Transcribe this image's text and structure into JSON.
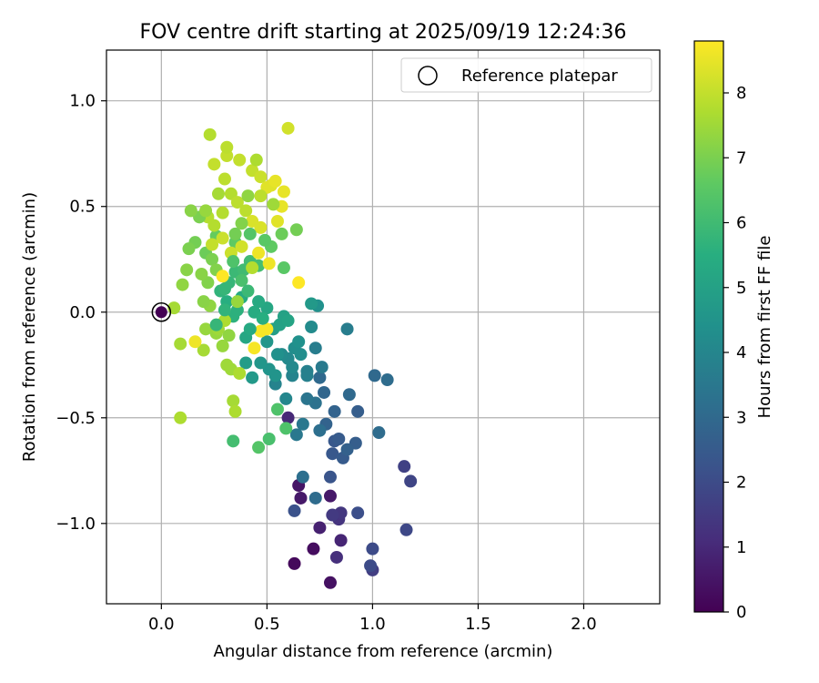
{
  "chart_data": {
    "type": "scatter",
    "title": "FOV centre drift starting at 2025/09/19 12:24:36",
    "xlabel": "Angular distance from reference (arcmin)",
    "ylabel": "Rotation from reference (arcmin)",
    "xlim": [
      -0.26,
      2.36
    ],
    "ylim": [
      -1.38,
      1.24
    ],
    "x_ticks": [
      0.0,
      0.5,
      1.0,
      1.5,
      2.0
    ],
    "x_tick_labels": [
      "0.0",
      "0.5",
      "1.0",
      "1.5",
      "2.0"
    ],
    "y_ticks": [
      -1.0,
      -0.5,
      0.0,
      0.5,
      1.0
    ],
    "y_tick_labels": [
      "−1.0",
      "−0.5",
      "0.0",
      "0.5",
      "1.0"
    ],
    "grid": true,
    "legend": {
      "position": "top-right",
      "entries": [
        "Reference platepar"
      ]
    },
    "reference_point": {
      "x": 0.0,
      "y": 0.0,
      "label": "Reference platepar"
    },
    "colorbar": {
      "label": "Hours from first FF file",
      "colormap": "viridis",
      "range": [
        0,
        8.8
      ],
      "ticks": [
        0,
        1,
        2,
        3,
        4,
        5,
        6,
        7,
        8
      ],
      "tick_labels": [
        "0",
        "1",
        "2",
        "3",
        "4",
        "5",
        "6",
        "7",
        "8"
      ]
    },
    "points": [
      [
        0.63,
        -1.19,
        0.2
      ],
      [
        0.72,
        -1.12,
        0.3
      ],
      [
        0.8,
        -1.28,
        0.4
      ],
      [
        0.65,
        -0.82,
        0.5
      ],
      [
        0.66,
        -0.88,
        0.6
      ],
      [
        0.8,
        -0.87,
        0.6
      ],
      [
        0.75,
        -1.02,
        0.8
      ],
      [
        0.85,
        -1.08,
        0.9
      ],
      [
        0.6,
        -0.5,
        1.0
      ],
      [
        0.83,
        -1.16,
        1.2
      ],
      [
        0.84,
        -0.98,
        1.3
      ],
      [
        0.85,
        -0.95,
        1.4
      ],
      [
        0.81,
        -0.96,
        1.5
      ],
      [
        1.0,
        -1.22,
        1.6
      ],
      [
        1.15,
        -0.73,
        1.7
      ],
      [
        1.18,
        -0.8,
        1.8
      ],
      [
        1.16,
        -1.03,
        1.9
      ],
      [
        0.99,
        -1.2,
        2.0
      ],
      [
        1.0,
        -1.12,
        2.0
      ],
      [
        0.93,
        -0.95,
        2.1
      ],
      [
        0.63,
        -0.94,
        2.2
      ],
      [
        0.8,
        -0.78,
        2.3
      ],
      [
        0.81,
        -0.67,
        2.4
      ],
      [
        0.82,
        -0.61,
        2.4
      ],
      [
        0.84,
        -0.6,
        2.5
      ],
      [
        0.86,
        -0.69,
        2.5
      ],
      [
        0.92,
        -0.62,
        2.6
      ],
      [
        0.93,
        -0.47,
        2.6
      ],
      [
        0.88,
        -0.65,
        2.7
      ],
      [
        0.82,
        -0.47,
        2.8
      ],
      [
        0.78,
        -0.53,
        2.8
      ],
      [
        0.77,
        -0.38,
        2.9
      ],
      [
        0.75,
        -0.31,
        3.0
      ],
      [
        0.89,
        -0.39,
        3.0
      ],
      [
        1.01,
        -0.3,
        3.0
      ],
      [
        1.07,
        -0.32,
        3.1
      ],
      [
        1.03,
        -0.57,
        3.1
      ],
      [
        0.73,
        -0.88,
        3.1
      ],
      [
        0.67,
        -0.78,
        3.2
      ],
      [
        0.75,
        -0.56,
        3.2
      ],
      [
        0.73,
        -0.43,
        3.3
      ],
      [
        0.69,
        -0.41,
        3.4
      ],
      [
        0.67,
        -0.53,
        3.5
      ],
      [
        0.64,
        -0.58,
        3.5
      ],
      [
        0.76,
        -0.26,
        3.6
      ],
      [
        0.73,
        -0.17,
        3.7
      ],
      [
        0.88,
        -0.08,
        3.7
      ],
      [
        0.69,
        -0.28,
        3.8
      ],
      [
        0.69,
        -0.3,
        3.8
      ],
      [
        0.62,
        -0.3,
        3.9
      ],
      [
        0.54,
        -0.34,
        3.9
      ],
      [
        0.59,
        -0.41,
        4.0
      ],
      [
        0.62,
        -0.26,
        4.1
      ],
      [
        0.6,
        -0.22,
        4.1
      ],
      [
        0.57,
        -0.2,
        4.2
      ],
      [
        0.63,
        -0.17,
        4.3
      ],
      [
        0.65,
        -0.14,
        4.4
      ],
      [
        0.54,
        -0.3,
        4.5
      ],
      [
        0.51,
        -0.27,
        4.5
      ],
      [
        0.5,
        -0.14,
        4.6
      ],
      [
        0.47,
        -0.24,
        4.6
      ],
      [
        0.43,
        -0.31,
        4.7
      ],
      [
        0.4,
        -0.24,
        4.8
      ],
      [
        0.53,
        -0.08,
        4.9
      ],
      [
        0.56,
        -0.06,
        5.0
      ],
      [
        0.58,
        -0.02,
        5.0
      ],
      [
        0.6,
        -0.04,
        5.1
      ],
      [
        0.5,
        0.02,
        5.2
      ],
      [
        0.46,
        0.05,
        5.3
      ],
      [
        0.44,
        0.0,
        5.4
      ],
      [
        0.38,
        0.07,
        5.4
      ],
      [
        0.31,
        0.05,
        5.5
      ],
      [
        0.34,
        -0.02,
        5.6
      ],
      [
        0.36,
        0.01,
        5.6
      ],
      [
        0.28,
        0.1,
        5.7
      ],
      [
        0.3,
        0.11,
        5.8
      ],
      [
        0.32,
        0.14,
        5.8
      ],
      [
        0.35,
        0.19,
        5.9
      ],
      [
        0.39,
        0.2,
        6.0
      ],
      [
        0.42,
        0.24,
        6.0
      ],
      [
        0.46,
        0.22,
        6.1
      ],
      [
        0.34,
        -0.61,
        6.1
      ],
      [
        0.51,
        -0.6,
        6.2
      ],
      [
        0.55,
        -0.46,
        6.3
      ],
      [
        0.59,
        -0.55,
        6.3
      ],
      [
        0.46,
        -0.64,
        6.4
      ],
      [
        0.58,
        0.21,
        6.5
      ],
      [
        0.52,
        0.31,
        6.6
      ],
      [
        0.35,
        0.33,
        6.6
      ],
      [
        0.26,
        0.36,
        6.7
      ],
      [
        0.21,
        0.28,
        6.8
      ],
      [
        0.16,
        0.33,
        6.9
      ],
      [
        0.13,
        0.3,
        7.0
      ],
      [
        0.24,
        0.25,
        7.0
      ],
      [
        0.26,
        0.2,
        7.1
      ],
      [
        0.22,
        0.14,
        7.1
      ],
      [
        0.19,
        0.18,
        7.2
      ],
      [
        0.12,
        0.2,
        7.2
      ],
      [
        0.1,
        0.13,
        7.3
      ],
      [
        0.23,
        0.03,
        7.3
      ],
      [
        0.21,
        -0.08,
        7.4
      ],
      [
        0.26,
        -0.1,
        7.4
      ],
      [
        0.29,
        -0.16,
        7.4
      ],
      [
        0.31,
        -0.25,
        7.5
      ],
      [
        0.33,
        -0.27,
        7.5
      ],
      [
        0.27,
        -0.08,
        7.5
      ],
      [
        0.09,
        -0.15,
        7.6
      ],
      [
        0.06,
        0.02,
        7.6
      ],
      [
        0.2,
        -0.18,
        7.6
      ],
      [
        0.34,
        -0.42,
        7.6
      ],
      [
        0.35,
        -0.47,
        7.7
      ],
      [
        0.09,
        -0.5,
        7.7
      ],
      [
        0.37,
        -0.29,
        7.7
      ],
      [
        0.3,
        -0.04,
        7.7
      ],
      [
        0.22,
        0.45,
        7.8
      ],
      [
        0.25,
        0.41,
        7.8
      ],
      [
        0.29,
        0.47,
        7.8
      ],
      [
        0.33,
        0.56,
        7.8
      ],
      [
        0.36,
        0.52,
        7.9
      ],
      [
        0.4,
        0.48,
        7.9
      ],
      [
        0.3,
        0.63,
        7.9
      ],
      [
        0.25,
        0.7,
        8.0
      ],
      [
        0.31,
        0.74,
        8.0
      ],
      [
        0.37,
        0.72,
        8.0
      ],
      [
        0.43,
        0.67,
        8.0
      ],
      [
        0.47,
        0.64,
        8.1
      ],
      [
        0.23,
        0.84,
        7.8
      ],
      [
        0.31,
        0.78,
        7.9
      ],
      [
        0.24,
        0.32,
        8.0
      ],
      [
        0.29,
        0.35,
        8.1
      ],
      [
        0.33,
        0.28,
        8.1
      ],
      [
        0.38,
        0.31,
        8.2
      ],
      [
        0.43,
        0.43,
        8.3
      ],
      [
        0.47,
        0.4,
        8.3
      ],
      [
        0.5,
        0.59,
        8.4
      ],
      [
        0.52,
        0.6,
        8.4
      ],
      [
        0.54,
        0.62,
        8.5
      ],
      [
        0.58,
        0.57,
        8.5
      ],
      [
        0.57,
        0.5,
        8.5
      ],
      [
        0.55,
        0.43,
        8.4
      ],
      [
        0.51,
        0.23,
        8.6
      ],
      [
        0.46,
        0.28,
        8.6
      ],
      [
        0.5,
        -0.08,
        8.7
      ],
      [
        0.44,
        -0.17,
        8.7
      ],
      [
        0.16,
        -0.14,
        8.6
      ],
      [
        0.47,
        -0.09,
        8.7
      ],
      [
        0.29,
        0.17,
        8.8
      ],
      [
        0.65,
        0.14,
        8.8
      ],
      [
        0.6,
        0.87,
        8.2
      ],
      [
        0.38,
        0.42,
        7.1
      ],
      [
        0.18,
        0.45,
        7.0
      ],
      [
        0.14,
        0.48,
        7.2
      ],
      [
        0.64,
        0.39,
        6.9
      ],
      [
        0.57,
        0.37,
        6.8
      ],
      [
        0.41,
        0.55,
        7.3
      ],
      [
        0.45,
        0.72,
        7.7
      ],
      [
        0.21,
        0.48,
        7.4
      ],
      [
        0.27,
        0.56,
        7.6
      ],
      [
        0.53,
        0.51,
        7.5
      ],
      [
        0.47,
        0.55,
        7.9
      ],
      [
        0.42,
        0.37,
        6.4
      ],
      [
        0.49,
        0.34,
        6.5
      ],
      [
        0.34,
        0.24,
        6.3
      ],
      [
        0.38,
        0.15,
        6.2
      ],
      [
        0.41,
        0.1,
        5.9
      ],
      [
        0.3,
        0.01,
        5.7
      ],
      [
        0.26,
        -0.06,
        5.8
      ],
      [
        0.4,
        -0.12,
        5.2
      ],
      [
        0.42,
        -0.08,
        5.3
      ],
      [
        0.48,
        -0.03,
        5.5
      ],
      [
        0.55,
        -0.2,
        4.4
      ],
      [
        0.66,
        -0.2,
        4.3
      ],
      [
        0.71,
        -0.07,
        4.2
      ],
      [
        0.74,
        0.03,
        4.4
      ],
      [
        0.71,
        0.04,
        4.7
      ],
      [
        0.2,
        0.05,
        7.2
      ],
      [
        0.32,
        -0.11,
        7.3
      ],
      [
        0.35,
        0.37,
        6.9
      ],
      [
        0.43,
        0.21,
        7.8
      ],
      [
        0.36,
        0.05,
        7.4
      ]
    ]
  }
}
